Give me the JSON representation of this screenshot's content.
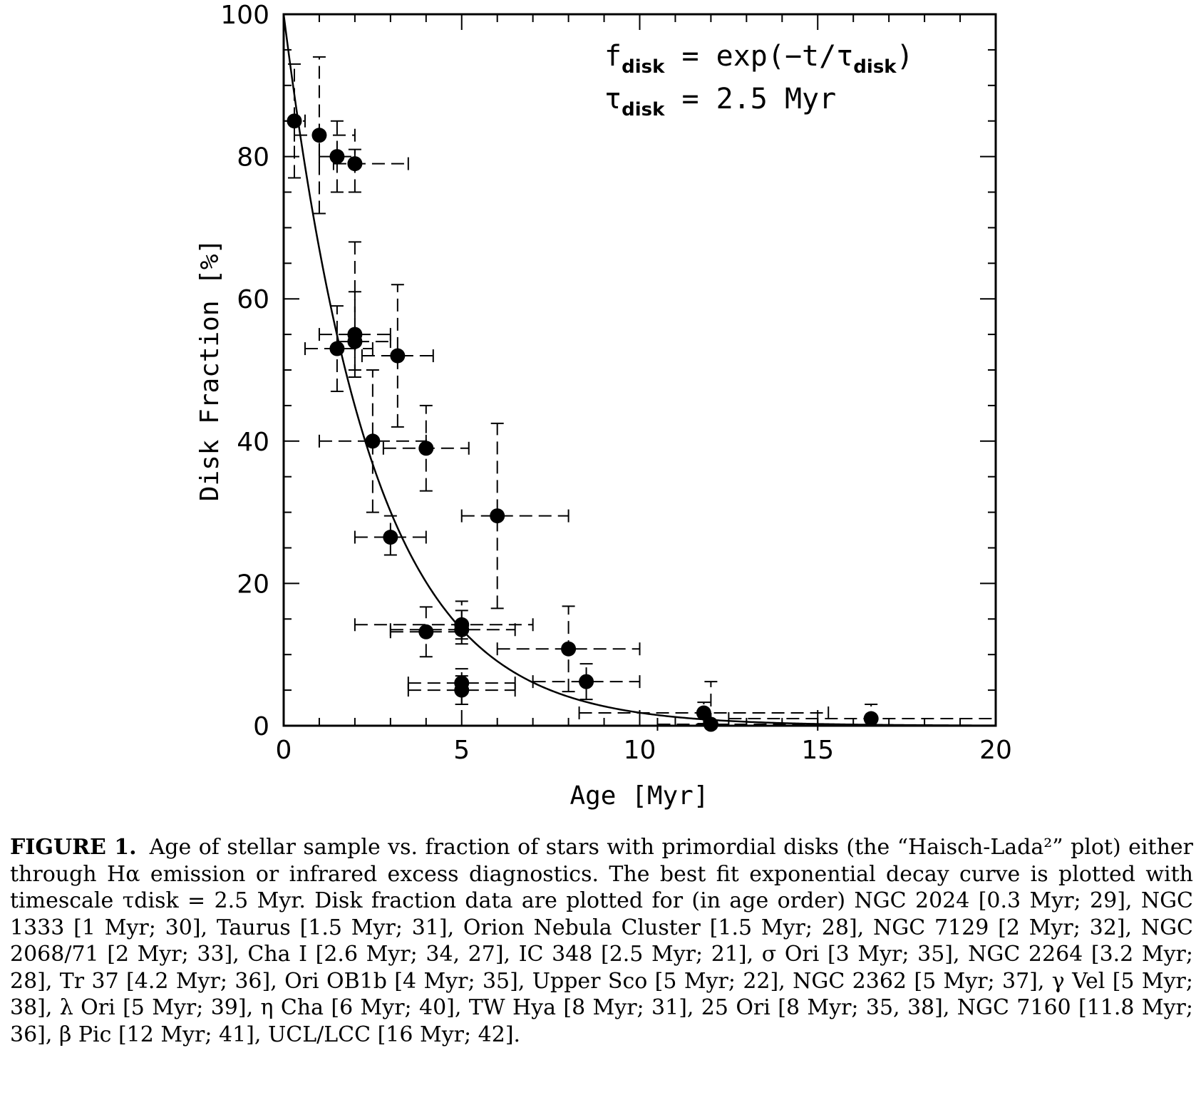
{
  "chart_data": {
    "type": "scatter",
    "xlabel": "Age [Myr]",
    "ylabel": "Disk Fraction [%]",
    "xlim": [
      0,
      20
    ],
    "ylim": [
      0,
      100
    ],
    "xticks": [
      0,
      5,
      10,
      15,
      20
    ],
    "yticks": [
      0,
      20,
      40,
      60,
      80,
      100
    ],
    "grid": false,
    "annotation": {
      "line1": {
        "lhs": "f",
        "lhs_sub": "disk",
        "eq": " = ",
        "rhs": "exp(−t/τ",
        "rhs_sub": "disk",
        "close": ")"
      },
      "line2": {
        "lhs": "τ",
        "lhs_sub": "disk",
        "eq": " = ",
        "rhs": "2.5 Myr"
      }
    },
    "fit_curve": {
      "form": "exp",
      "amplitude": 100,
      "tau": 2.5
    },
    "points": [
      {
        "x": 0.3,
        "y": 85,
        "xerr": [
          0.3,
          0.3
        ],
        "yerr": [
          8,
          8
        ]
      },
      {
        "x": 1.0,
        "y": 83,
        "xerr": [
          0.7,
          1.0
        ],
        "yerr": [
          11,
          11
        ]
      },
      {
        "x": 1.5,
        "y": 80,
        "xerr": [
          0.5,
          0.5
        ],
        "yerr": [
          5,
          5
        ]
      },
      {
        "x": 2.0,
        "y": 79,
        "xerr": [
          0.6,
          1.5
        ],
        "yerr": [
          4,
          2
        ]
      },
      {
        "x": 1.5,
        "y": 53,
        "xerr": [
          0.9,
          1.0
        ],
        "yerr": [
          6,
          6
        ]
      },
      {
        "x": 2.0,
        "y": 55,
        "xerr": [
          1.0,
          1.0
        ],
        "yerr": [
          5,
          13
        ]
      },
      {
        "x": 2.0,
        "y": 54,
        "xerr": [
          0.5,
          1.0
        ],
        "yerr": [
          5,
          7
        ]
      },
      {
        "x": 3.2,
        "y": 52,
        "xerr": [
          1.0,
          1.0
        ],
        "yerr": [
          10,
          10
        ]
      },
      {
        "x": 2.5,
        "y": 40,
        "xerr": [
          1.5,
          1.5
        ],
        "yerr": [
          10,
          10
        ]
      },
      {
        "x": 4.0,
        "y": 39,
        "xerr": [
          1.2,
          1.2
        ],
        "yerr": [
          6,
          6
        ]
      },
      {
        "x": 3.0,
        "y": 26.5,
        "xerr": [
          1.0,
          1.0
        ],
        "yerr": [
          2.5,
          3
        ]
      },
      {
        "x": 6.0,
        "y": 29.5,
        "xerr": [
          1.0,
          2.0
        ],
        "yerr": [
          13,
          13
        ]
      },
      {
        "x": 4.0,
        "y": 13.2,
        "xerr": [
          1.0,
          1.0
        ],
        "yerr": [
          3.5,
          3.5
        ]
      },
      {
        "x": 5.0,
        "y": 14.2,
        "xerr": [
          3.0,
          2.0
        ],
        "yerr": [
          2,
          2
        ]
      },
      {
        "x": 5.0,
        "y": 13.5,
        "xerr": [
          2.0,
          1.5
        ],
        "yerr": [
          2,
          4
        ]
      },
      {
        "x": 8.0,
        "y": 10.8,
        "xerr": [
          2.0,
          2.0
        ],
        "yerr": [
          6,
          6
        ]
      },
      {
        "x": 5.0,
        "y": 6.0,
        "xerr": [
          1.5,
          1.5
        ],
        "yerr": [
          3,
          2
        ]
      },
      {
        "x": 5.0,
        "y": 5.0,
        "xerr": [
          1.5,
          1.5
        ],
        "yerr": [
          2,
          2
        ]
      },
      {
        "x": 8.5,
        "y": 6.2,
        "xerr": [
          1.5,
          1.5
        ],
        "yerr": [
          2.5,
          2.5
        ]
      },
      {
        "x": 11.8,
        "y": 1.8,
        "xerr": [
          3.5,
          3.5
        ],
        "yerr": [
          1.5,
          1.5
        ]
      },
      {
        "x": 12.0,
        "y": 0.2,
        "xerr": [
          1.5,
          3.0
        ],
        "yerr": [
          0.2,
          6
        ]
      },
      {
        "x": 16.5,
        "y": 1.0,
        "xerr": [
          4.0,
          3.5
        ],
        "yerr": [
          1,
          2
        ]
      }
    ]
  },
  "caption": {
    "label": "FIGURE 1.",
    "text": "Age of stellar sample vs. fraction of stars with primordial disks (the “Haisch-Lada²” plot) either through Hα emission or infrared excess diagnostics. The best fit exponential decay curve is plotted with timescale τdisk = 2.5 Myr. Disk fraction data are plotted for (in age order) NGC 2024 [0.3 Myr; 29], NGC 1333 [1 Myr; 30], Taurus [1.5 Myr; 31], Orion Nebula Cluster [1.5 Myr; 28], NGC 7129 [2 Myr; 32], NGC 2068/71 [2 Myr; 33], Cha I [2.6 Myr; 34, 27], IC 348 [2.5 Myr; 21], σ Ori [3 Myr; 35], NGC 2264 [3.2 Myr; 28], Tr 37 [4.2 Myr; 36], Ori OB1b [4 Myr; 35], Upper Sco [5 Myr; 22], NGC 2362 [5 Myr; 37], γ Vel [5 Myr; 38], λ Ori [5 Myr; 39], η Cha [6 Myr; 40], TW Hya [8 Myr; 31], 25 Ori [8 Myr; 35, 38], NGC 7160 [11.8 Myr; 36], β Pic [12 Myr; 41], UCL/LCC [16 Myr; 42]."
  }
}
